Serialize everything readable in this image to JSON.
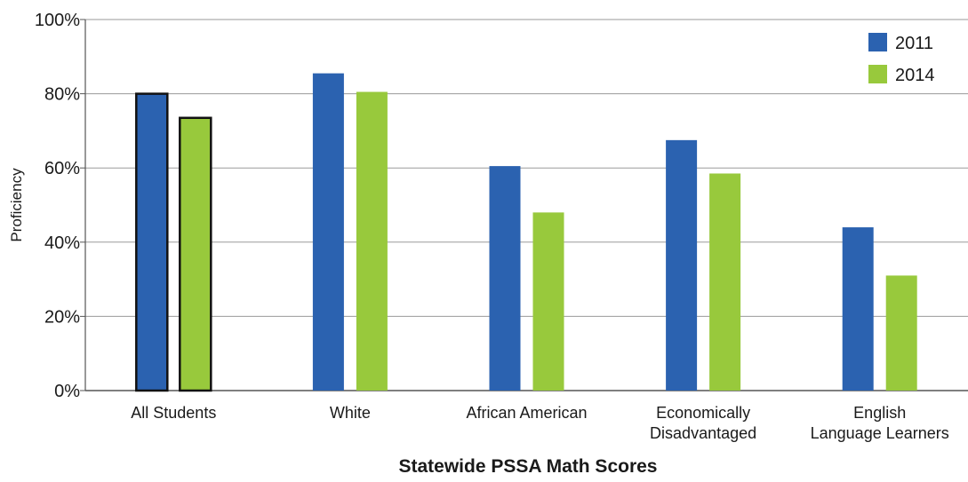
{
  "chart_data": {
    "type": "bar",
    "title": "",
    "xlabel": "Statewide PSSA Math Scores",
    "ylabel": "Proficiency",
    "ylim": [
      0,
      100
    ],
    "yticks": [
      "0%",
      "20%",
      "40%",
      "60%",
      "80%",
      "100%"
    ],
    "grid": true,
    "legend_position": "top-right",
    "categories": [
      [
        "All Students"
      ],
      [
        "White"
      ],
      [
        "African American"
      ],
      [
        "Economically",
        "Disadvantaged"
      ],
      [
        "English",
        "Language Learners"
      ]
    ],
    "highlighted_category": "All Students",
    "series": [
      {
        "name": "2011",
        "color": "#2b62b0",
        "values": [
          80,
          85.5,
          60.5,
          67.5,
          44
        ]
      },
      {
        "name": "2014",
        "color": "#98c93c",
        "values": [
          73.5,
          80.5,
          48,
          58.5,
          31
        ]
      }
    ]
  }
}
